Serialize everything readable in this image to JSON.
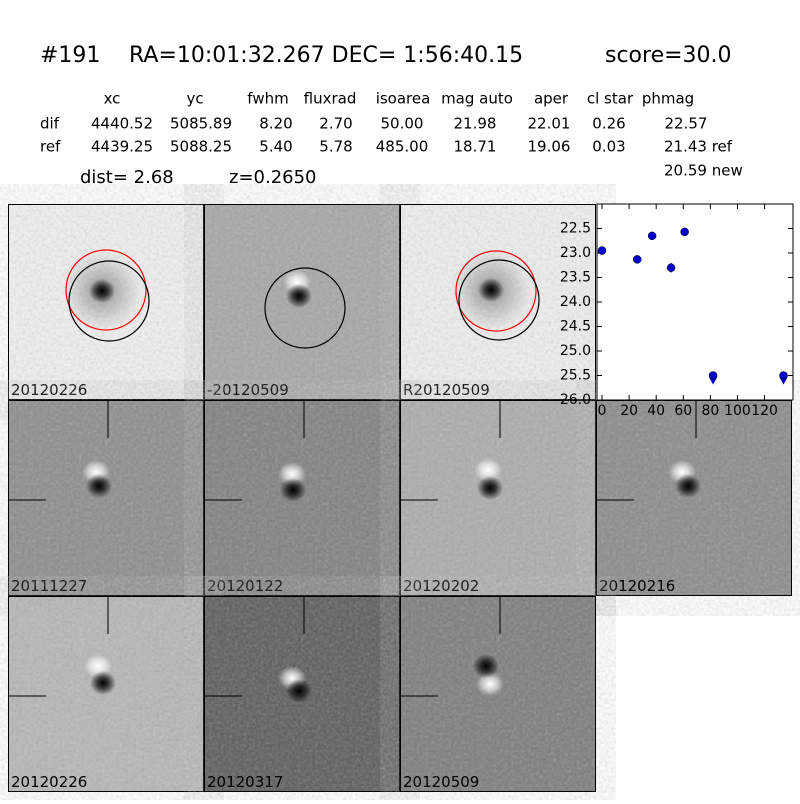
{
  "header": {
    "id": "#191",
    "coords": "RA=10:01:32.267 DEC= 1:56:40.15",
    "score": "score=30.0"
  },
  "table": {
    "columns": [
      "xc",
      "yc",
      "fwhm",
      "fluxrad",
      "isoarea",
      "mag auto",
      "aper",
      "cl star",
      "phmag"
    ],
    "rows": [
      [
        "dif",
        "4440.52",
        "5085.89",
        "8.20",
        "2.70",
        "50.00",
        "21.98",
        "22.01",
        "0.26",
        "22.57"
      ],
      [
        "ref",
        "4439.25",
        "5088.25",
        "5.40",
        "5.78",
        "485.00",
        "18.71",
        "19.06",
        "0.03",
        "21.43 ref"
      ]
    ],
    "extra": "20.59 new"
  },
  "dist": "dist=  2.68",
  "z": "z=0.2650",
  "panels": [
    {
      "label": "20120226"
    },
    {
      "label": "-20120509"
    },
    {
      "label": "R20120509"
    },
    {
      "label": "20111227"
    },
    {
      "label": "20120122"
    },
    {
      "label": "20120202"
    },
    {
      "label": "20120216"
    },
    {
      "label": "20120226",
      "color": "#ff0000"
    },
    {
      "label": "20120317"
    },
    {
      "label": "20120509"
    }
  ],
  "chart_data": {
    "type": "scatter",
    "xlim": [
      -3.7,
      141
    ],
    "ylim": [
      26.0,
      22.0
    ],
    "xticks": [
      0,
      20,
      40,
      60,
      80,
      100,
      120
    ],
    "yticks": [
      22.5,
      {
        "value": 23,
        "label": "23.0"
      },
      23.5,
      {
        "value": 24,
        "label": "24.0"
      },
      24.5,
      {
        "value": 25,
        "label": "25.0"
      },
      25.5,
      {
        "value": 26,
        "label": "26.0"
      }
    ],
    "series": [
      {
        "color": "#0000cc",
        "x": [
          0,
          26,
          37,
          51,
          61,
          82,
          134
        ],
        "values": [
          22.95,
          23.13,
          22.65,
          23.3,
          22.57,
          25.5,
          25.5
        ],
        "errors": [
          0.04,
          0.05,
          0.04,
          0.1,
          0.03,
          0.05,
          0.05
        ],
        "upper_limit": [
          false,
          false,
          false,
          false,
          false,
          true,
          true
        ]
      }
    ]
  }
}
